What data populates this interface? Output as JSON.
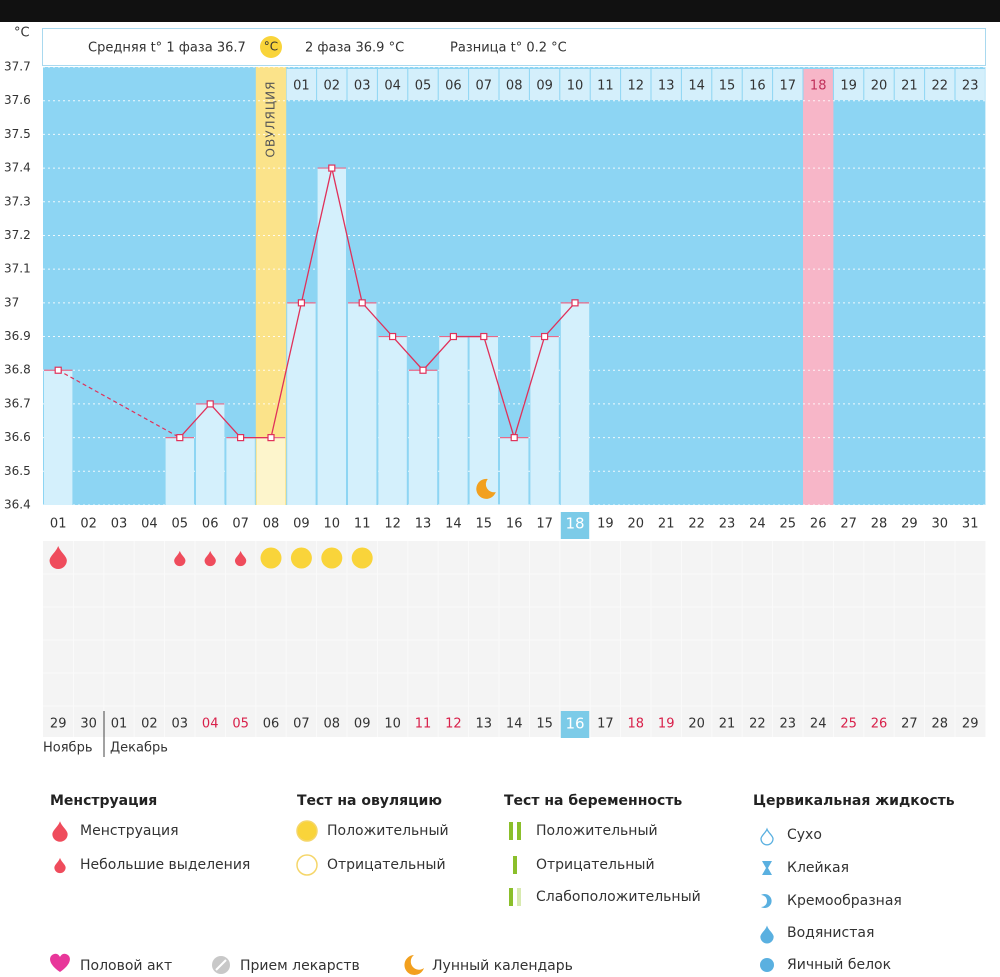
{
  "header": {
    "phase1": "Средняя t° 1 фаза 36.7",
    "unit": "°C",
    "phase2": "2 фаза 36.9 °C",
    "difference": "Разница t° 0.2 °C"
  },
  "chart_data": {
    "type": "line",
    "y_unit": "°C",
    "color": "#e0315a",
    "grid": true,
    "ylim": [
      36.4,
      37.7
    ],
    "yticks": [
      36.4,
      36.5,
      36.6,
      36.7,
      36.8,
      36.9,
      37,
      37.1,
      37.2,
      37.3,
      37.4,
      37.5,
      37.6,
      37.7
    ],
    "categories": [
      "01",
      "02",
      "03",
      "04",
      "05",
      "06",
      "07",
      "08",
      "09",
      "10",
      "11",
      "12",
      "13",
      "14",
      "15",
      "16",
      "17",
      "18",
      "19",
      "20",
      "21",
      "22",
      "23",
      "24",
      "25",
      "26",
      "27",
      "28",
      "29",
      "30",
      "31"
    ],
    "values": [
      36.8,
      null,
      null,
      null,
      36.6,
      36.7,
      36.6,
      36.6,
      37.0,
      37.4,
      37.0,
      36.9,
      36.8,
      36.9,
      36.9,
      36.6,
      36.9,
      37.0,
      null,
      null,
      null,
      null,
      null,
      null,
      null,
      null,
      null,
      null,
      null,
      null,
      null
    ],
    "ovulation_label": "ОВУЛЯЦИЯ",
    "cycle_days": [
      null,
      null,
      null,
      null,
      null,
      null,
      null,
      null,
      "01",
      "02",
      "03",
      "04",
      "05",
      "06",
      "07",
      "08",
      "09",
      "10",
      "11",
      "12",
      "13",
      "14",
      "15",
      "16",
      "17",
      "18",
      "19",
      "20",
      "21",
      "22",
      "23"
    ],
    "dates": [
      "29",
      "30",
      "01",
      "02",
      "03",
      "04",
      "05",
      "06",
      "07",
      "08",
      "09",
      "10",
      "11",
      "12",
      "13",
      "14",
      "15",
      "16",
      "17",
      "18",
      "19",
      "20",
      "21",
      "22",
      "23",
      "24",
      "25",
      "26",
      "27",
      "28",
      "29"
    ],
    "months": [
      "Ноябрь",
      "Декабрь"
    ]
  },
  "legend": {
    "groups": [
      {
        "title": "Менструация",
        "items": [
          "Менструация",
          "Небольшие выделения"
        ]
      },
      {
        "title": "Тест на овуляцию",
        "items": [
          "Положительный",
          "Отрицательный"
        ]
      },
      {
        "title": "Тест на беременность",
        "items": [
          "Положительный",
          "Отрицательный",
          "Слабоположительный"
        ]
      },
      {
        "title": "Цервикальная жидкость",
        "items": [
          "Сухо",
          "Клейкая",
          "Кремообразная",
          "Водянистая",
          "Яичный белок"
        ]
      }
    ],
    "other": [
      "Половой акт",
      "Прием лекарств",
      "Лунный календарь"
    ]
  }
}
